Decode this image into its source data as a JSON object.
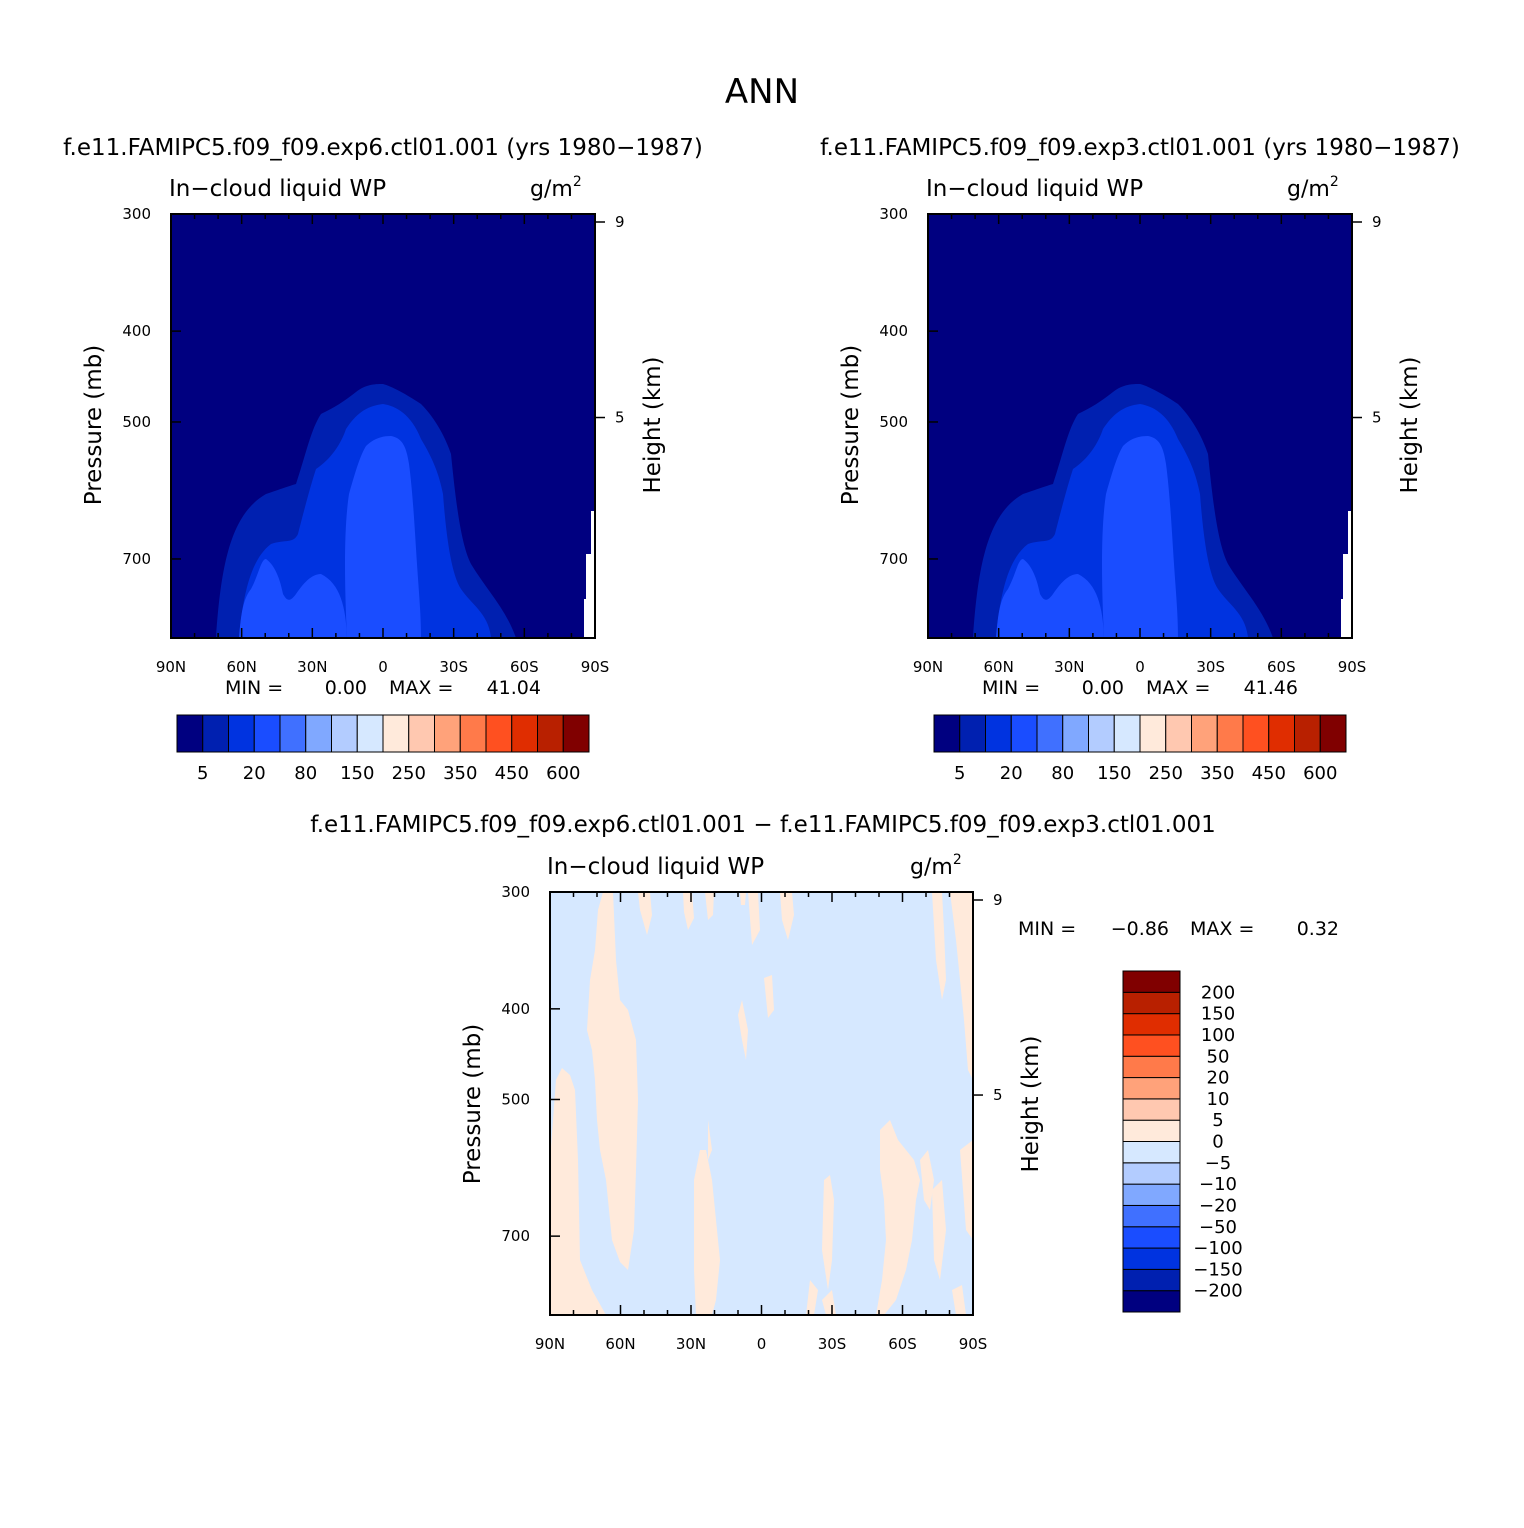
{
  "title": "ANN",
  "panels": [
    {
      "id": "p1",
      "case_title": "f.e11.FAMIPC5.f09_f09.exp6.ctl01.001 (yrs 1980−1987)",
      "variable": "In−cloud liquid WP",
      "units": "g/m",
      "units_sup": "2",
      "min_label": "MIN =",
      "min_value": "0.00",
      "max_label": "MAX =",
      "max_value": "41.04"
    },
    {
      "id": "p2",
      "case_title": "f.e11.FAMIPC5.f09_f09.exp3.ctl01.001 (yrs 1980−1987)",
      "variable": "In−cloud liquid WP",
      "units": "g/m",
      "units_sup": "2",
      "min_label": "MIN =",
      "min_value": "0.00",
      "max_label": "MAX =",
      "max_value": "41.46"
    },
    {
      "id": "p3",
      "case_title": "f.e11.FAMIPC5.f09_f09.exp6.ctl01.001 − f.e11.FAMIPC5.f09_f09.exp3.ctl01.001",
      "variable": "In−cloud liquid WP",
      "units": "g/m",
      "units_sup": "2",
      "min_label": "MIN =",
      "min_value": "−0.86",
      "max_label": "MAX =",
      "max_value": "0.32"
    }
  ],
  "axes": {
    "ylabel": "Pressure (mb)",
    "y2label": "Height (km)",
    "x_ticks": [
      "90N",
      "60N",
      "30N",
      "0",
      "30S",
      "60S",
      "90S"
    ],
    "y_ticks": [
      "300",
      "400",
      "500",
      "700"
    ],
    "y2_ticks": [
      "9",
      "5"
    ]
  },
  "colorbar_main": {
    "colors": [
      "#000080",
      "#0020b0",
      "#0033e0",
      "#1a4dff",
      "#4070ff",
      "#80a8ff",
      "#b3ccff",
      "#d6e8ff",
      "#ffeadb",
      "#ffc8b0",
      "#ffa27a",
      "#ff7a4a",
      "#ff5020",
      "#e02d00",
      "#b82000",
      "#800000"
    ],
    "labels": [
      "5",
      "20",
      "80",
      "150",
      "250",
      "350",
      "450",
      "600"
    ]
  },
  "colorbar_diff": {
    "colors": [
      "#000080",
      "#0020b0",
      "#0033e0",
      "#1a4dff",
      "#4070ff",
      "#80a8ff",
      "#b3ccff",
      "#d6e8ff",
      "#ffeadb",
      "#ffc8b0",
      "#ffa27a",
      "#ff7a4a",
      "#ff5020",
      "#e02d00",
      "#b82000",
      "#800000"
    ],
    "labels": [
      "−200",
      "−150",
      "−100",
      "−50",
      "−20",
      "−10",
      "−5",
      "0",
      "5",
      "10",
      "20",
      "50",
      "100",
      "150",
      "200"
    ]
  },
  "chart_data": [
    {
      "type": "heatmap",
      "title": "f.e11.FAMIPC5.f09_f09.exp6.ctl01.001 (yrs 1980−1987)",
      "subtitle": "In−cloud liquid WP",
      "units": "g/m2",
      "xlabel": "",
      "ylabel": "Pressure (mb)",
      "y2label": "Height (km)",
      "x_ticks": [
        "90N",
        "60N",
        "30N",
        "0",
        "30S",
        "60S",
        "90S"
      ],
      "y_ticks": [
        300,
        400,
        500,
        700
      ],
      "y2_ticks": [
        9,
        5
      ],
      "min": 0.0,
      "max": 41.04,
      "levels": [
        5,
        10,
        15,
        20,
        40,
        80,
        100,
        120,
        150,
        200,
        250,
        300,
        350,
        400,
        450,
        600
      ]
    },
    {
      "type": "heatmap",
      "title": "f.e11.FAMIPC5.f09_f09.exp3.ctl01.001 (yrs 1980−1987)",
      "subtitle": "In−cloud liquid WP",
      "units": "g/m2",
      "xlabel": "",
      "ylabel": "Pressure (mb)",
      "y2label": "Height (km)",
      "x_ticks": [
        "90N",
        "60N",
        "30N",
        "0",
        "30S",
        "60S",
        "90S"
      ],
      "y_ticks": [
        300,
        400,
        500,
        700
      ],
      "y2_ticks": [
        9,
        5
      ],
      "min": 0.0,
      "max": 41.46,
      "levels": [
        5,
        10,
        15,
        20,
        40,
        80,
        100,
        120,
        150,
        200,
        250,
        300,
        350,
        400,
        450,
        600
      ]
    },
    {
      "type": "heatmap",
      "title": "f.e11.FAMIPC5.f09_f09.exp6.ctl01.001 − f.e11.FAMIPC5.f09_f09.exp3.ctl01.001",
      "subtitle": "In−cloud liquid WP",
      "units": "g/m2",
      "xlabel": "",
      "ylabel": "Pressure (mb)",
      "y2label": "Height (km)",
      "x_ticks": [
        "90N",
        "60N",
        "30N",
        "0",
        "30S",
        "60S",
        "90S"
      ],
      "y_ticks": [
        300,
        400,
        500,
        700
      ],
      "y2_ticks": [
        9,
        5
      ],
      "min": -0.86,
      "max": 0.32,
      "levels": [
        -200,
        -150,
        -100,
        -50,
        -20,
        -10,
        -5,
        0,
        5,
        10,
        20,
        50,
        100,
        150,
        200
      ]
    }
  ]
}
